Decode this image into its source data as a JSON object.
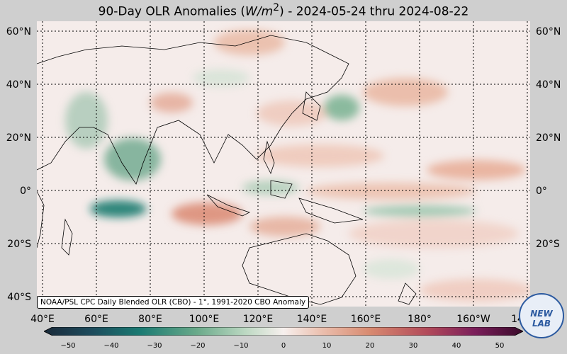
{
  "title": {
    "prefix": "90-Day OLR Anomalies (",
    "unit": "W/m",
    "sup": "2",
    "suffix": ") - 2024-05-24 thru 2024-08-22"
  },
  "lat_labels": [
    "60°N",
    "40°N",
    "20°N",
    "0°",
    "20°S",
    "40°S"
  ],
  "lon_labels": [
    "40°E",
    "60°E",
    "80°E",
    "100°E",
    "120°E",
    "140°E",
    "160°E",
    "180°",
    "160°W",
    "14"
  ],
  "credit": "NOAA/PSL CPC Daily Blended OLR (CBO) - 1°, 1991-2020 CBO Anomaly",
  "colorbar": {
    "ticks": [
      "−50",
      "−40",
      "−30",
      "−20",
      "−10",
      "0",
      "10",
      "20",
      "30",
      "40",
      "50"
    ],
    "range": [
      -50,
      50
    ],
    "low_color": "#1a2a3a",
    "mid_color": "#f7f0ee",
    "high_color": "#3a0a2a"
  },
  "logo": {
    "text": "NEW LAB",
    "icon": "noaa-lab-logo-icon"
  }
}
